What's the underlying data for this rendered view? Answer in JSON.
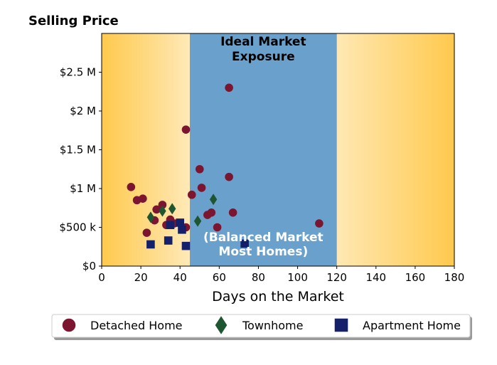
{
  "colors": {
    "detached": "#7b1530",
    "townhome": "#1e5631",
    "apartment": "#15206a",
    "band": "#6aa0cc",
    "gradient_edge": "#ffc94d",
    "gradient_mid": "#ffffff"
  },
  "chart_data": {
    "type": "scatter",
    "title": "Selling Price",
    "xlabel": "Days on the Market",
    "ylabel": "",
    "xlim": [
      0,
      180
    ],
    "ylim": [
      0,
      3000000
    ],
    "x_ticks": [
      0,
      20,
      40,
      60,
      80,
      100,
      120,
      140,
      160,
      180
    ],
    "x_tick_labels": [
      "0",
      "20",
      "40",
      "60",
      "80",
      "100",
      "120",
      "140",
      "160",
      "180"
    ],
    "y_ticks": [
      0,
      500000,
      1000000,
      1500000,
      2000000,
      2500000
    ],
    "y_tick_labels": [
      "$0",
      "$500 k",
      "$1 M",
      "$1.5 M",
      "$2 M",
      "$2.5 M"
    ],
    "grid": false,
    "highlight_band": {
      "x_range": [
        45,
        120
      ],
      "top_label_lines": [
        "Ideal Market",
        "Exposure"
      ],
      "bottom_label_lines": [
        "(Balanced Market",
        "Most Homes)"
      ]
    },
    "legend": {
      "placement": "bottom",
      "entries": [
        "Detached Home",
        "Townhome",
        "Apartment Home"
      ]
    },
    "series": [
      {
        "name": "Detached Home",
        "marker": "circle",
        "points": [
          [
            15,
            1020000
          ],
          [
            18,
            850000
          ],
          [
            21,
            870000
          ],
          [
            23,
            430000
          ],
          [
            27,
            590000
          ],
          [
            28,
            730000
          ],
          [
            31,
            790000
          ],
          [
            33,
            530000
          ],
          [
            35,
            600000
          ],
          [
            37,
            550000
          ],
          [
            43,
            1760000
          ],
          [
            43,
            500000
          ],
          [
            46,
            920000
          ],
          [
            50,
            1250000
          ],
          [
            51,
            1010000
          ],
          [
            54,
            660000
          ],
          [
            56,
            690000
          ],
          [
            59,
            500000
          ],
          [
            65,
            2300000
          ],
          [
            65,
            1150000
          ],
          [
            67,
            690000
          ],
          [
            111,
            550000
          ]
        ]
      },
      {
        "name": "Townhome",
        "marker": "diamond",
        "points": [
          [
            25,
            630000
          ],
          [
            31,
            710000
          ],
          [
            36,
            740000
          ],
          [
            49,
            580000
          ],
          [
            57,
            860000
          ]
        ]
      },
      {
        "name": "Apartment Home",
        "marker": "square",
        "points": [
          [
            25,
            280000
          ],
          [
            34,
            330000
          ],
          [
            35,
            530000
          ],
          [
            40,
            560000
          ],
          [
            41,
            470000
          ],
          [
            43,
            260000
          ],
          [
            73,
            290000
          ]
        ]
      }
    ]
  }
}
